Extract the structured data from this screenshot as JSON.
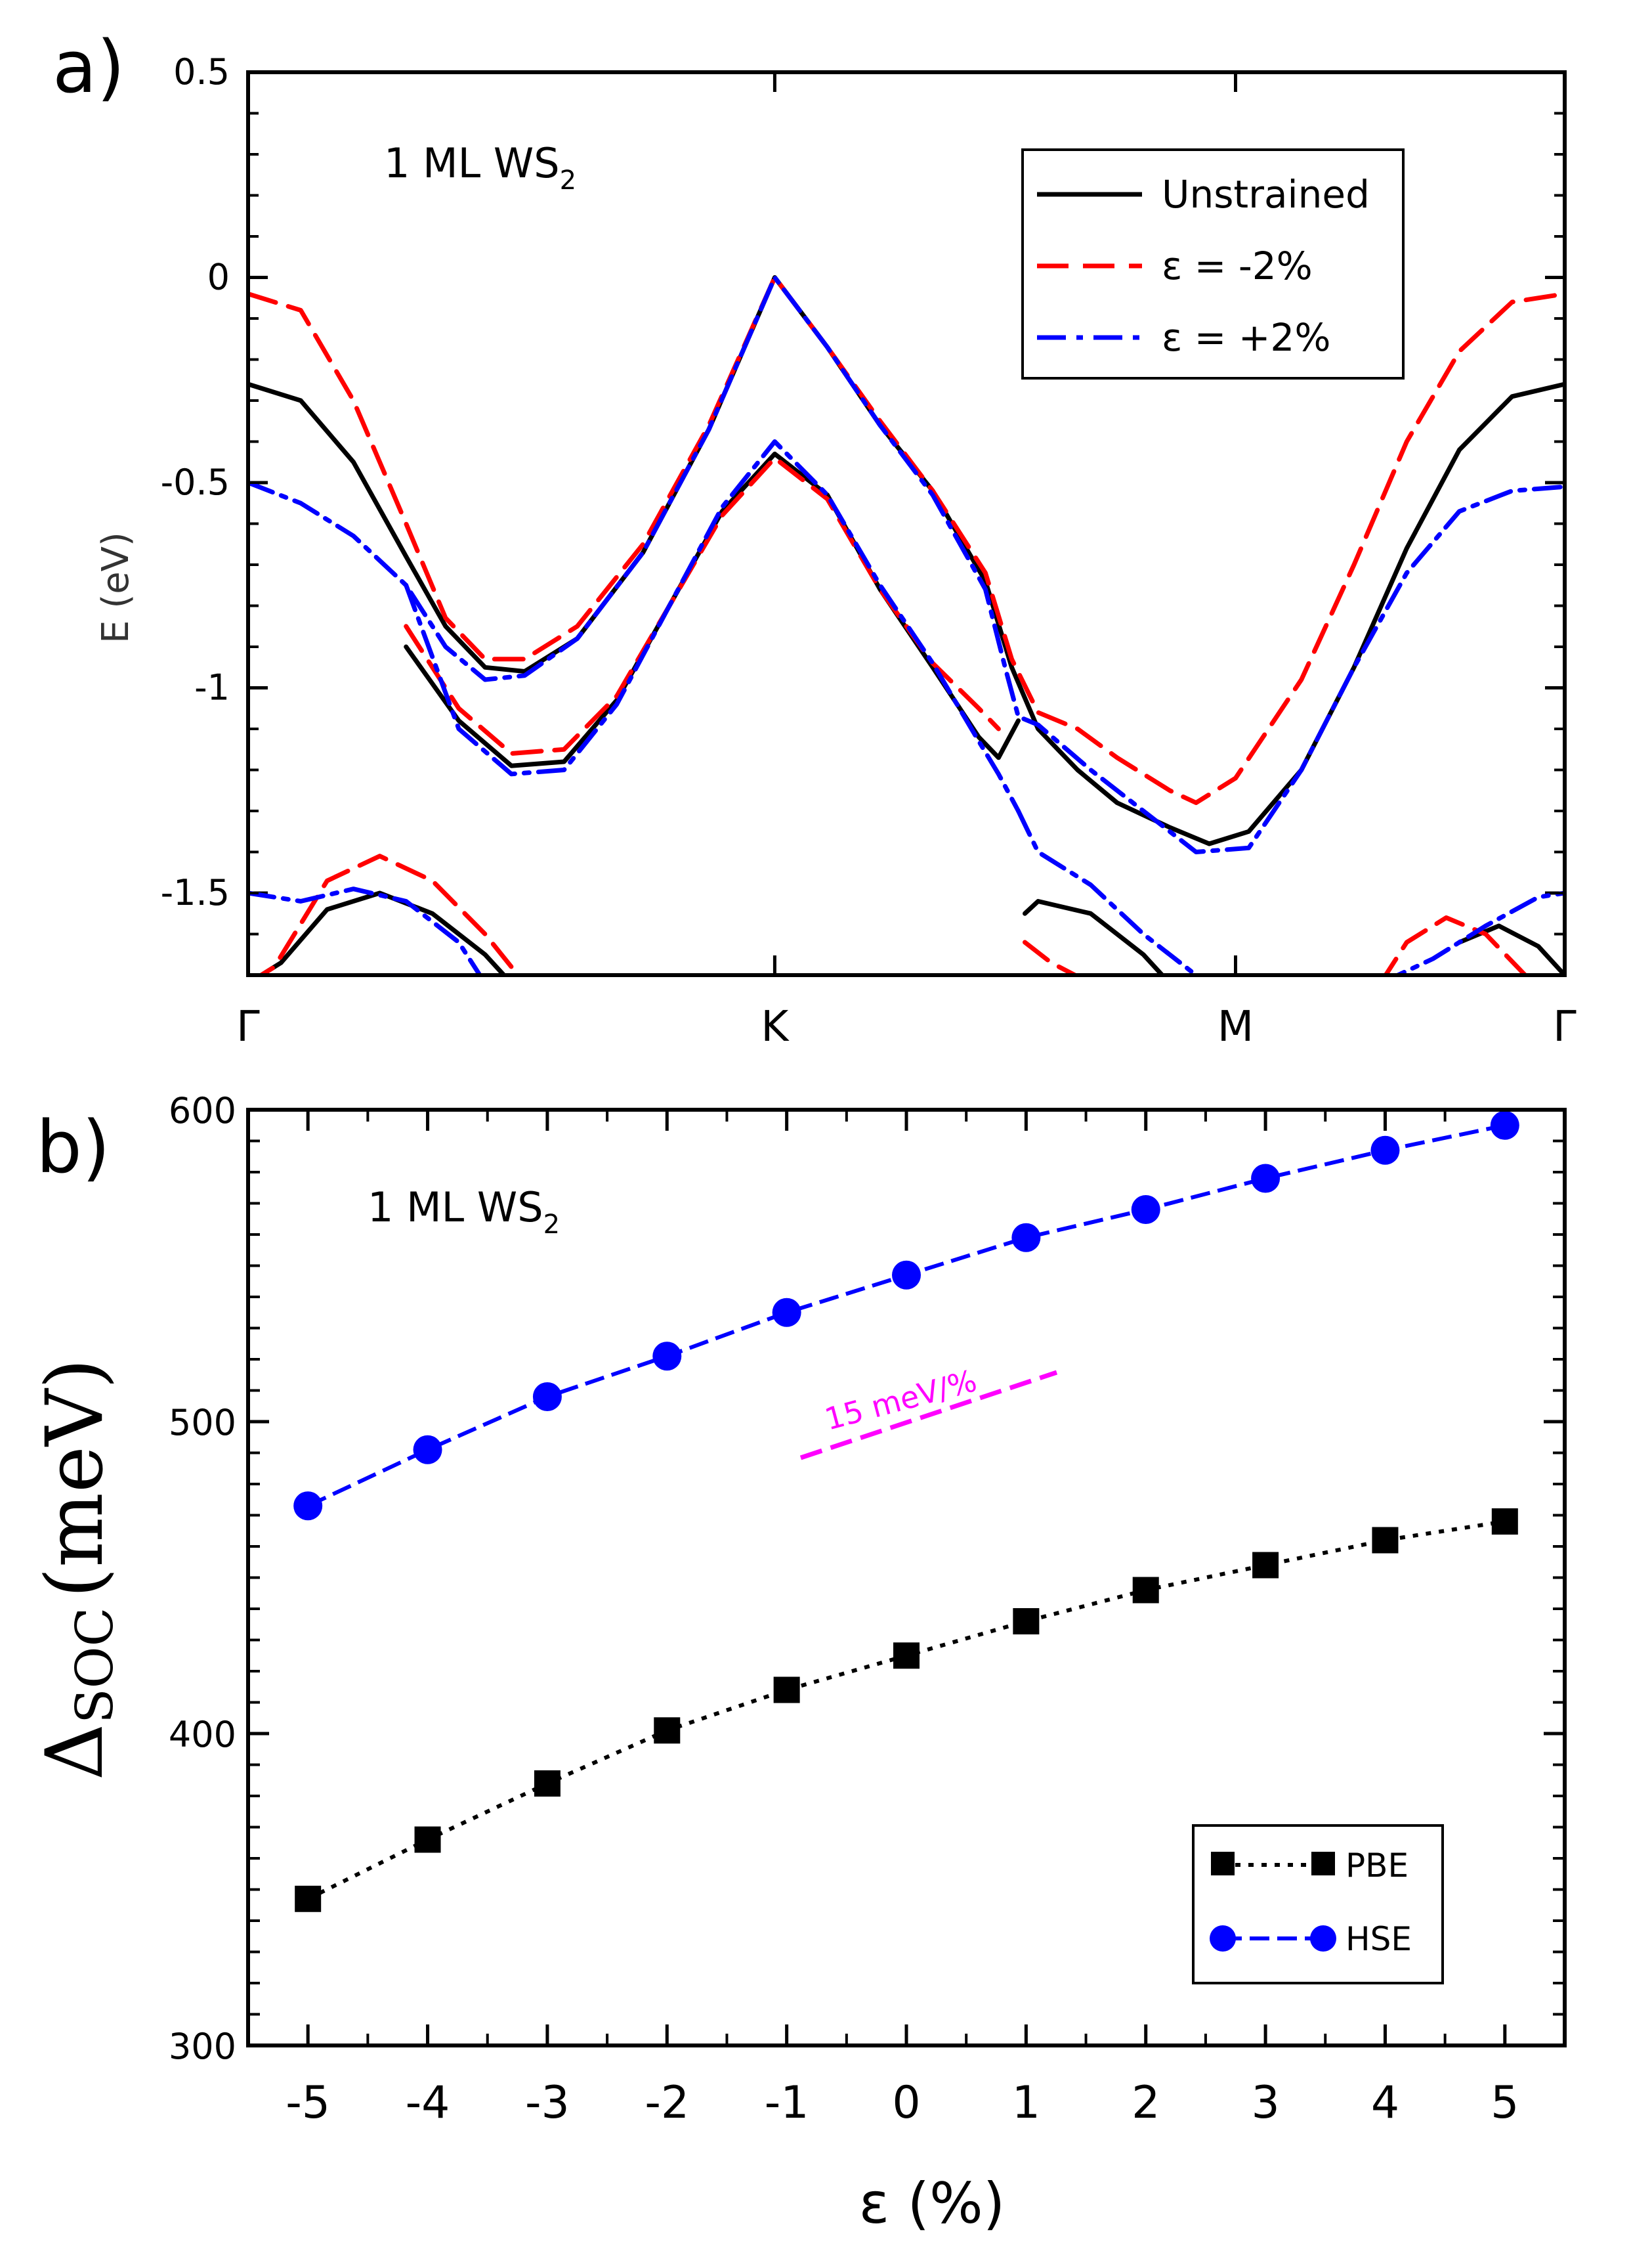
{
  "chart_data": [
    {
      "type": "line",
      "panel_label": "a)",
      "annotation": {
        "text": "1 ML WS",
        "subscript": "2"
      },
      "ylabel": "E (eV)",
      "ylim": [
        -1.7,
        0.5
      ],
      "yticks": [
        "0.5",
        "0",
        "-0.5",
        "-1",
        "-1.5"
      ],
      "ytick_values": [
        0.5,
        0,
        -0.5,
        -1,
        -1.5
      ],
      "kpoints": [
        {
          "label": "Γ",
          "pos": 0
        },
        {
          "label": "K",
          "pos": 0.4
        },
        {
          "label": "M",
          "pos": 0.75
        },
        {
          "label": "Γ",
          "pos": 1.0
        }
      ],
      "legend": [
        {
          "label": "Unstrained",
          "color": "#000000",
          "dash": "solid"
        },
        {
          "label": "ε = -2%",
          "color": "#ff0000",
          "dash": "dashed"
        },
        {
          "label": "ε = +2%",
          "color": "#0000ff",
          "dash": "dashdot"
        }
      ],
      "series": [
        {
          "name": "Unstrained band 1",
          "color": "#000000",
          "dash": "solid",
          "x": [
            0,
            0.04,
            0.08,
            0.12,
            0.15,
            0.18,
            0.21,
            0.25,
            0.3,
            0.35,
            0.4,
            0.44,
            0.48,
            0.52,
            0.56,
            0.58,
            0.6,
            0.63,
            0.66,
            0.7,
            0.73,
            0.76,
            0.8,
            0.84,
            0.88,
            0.92,
            0.96,
            1.0
          ],
          "y": [
            -0.26,
            -0.3,
            -0.45,
            -0.68,
            -0.85,
            -0.95,
            -0.96,
            -0.88,
            -0.67,
            -0.37,
            0.0,
            -0.17,
            -0.36,
            -0.52,
            -0.74,
            -0.95,
            -1.1,
            -1.2,
            -1.28,
            -1.34,
            -1.38,
            -1.35,
            -1.2,
            -0.95,
            -0.66,
            -0.42,
            -0.29,
            -0.26
          ]
        },
        {
          "name": "Unstrained band 2",
          "color": "#000000",
          "dash": "solid",
          "x": [
            0.12,
            0.16,
            0.2,
            0.24,
            0.28,
            0.32,
            0.36,
            0.4,
            0.44,
            0.48,
            0.52,
            0.555,
            0.57,
            0.585
          ],
          "y": [
            -0.9,
            -1.08,
            -1.19,
            -1.18,
            -1.03,
            -0.8,
            -0.57,
            -0.43,
            -0.53,
            -0.76,
            -0.95,
            -1.12,
            -1.17,
            -1.08
          ]
        },
        {
          "name": "Unstrained band 3",
          "color": "#000000",
          "dash": "solid",
          "x": [
            0.0,
            0.025,
            0.06,
            0.1,
            0.14,
            0.18,
            0.2
          ],
          "y": [
            -1.72,
            -1.67,
            -1.54,
            -1.5,
            -1.55,
            -1.65,
            -1.72
          ]
        },
        {
          "name": "Unstrained band 4",
          "color": "#000000",
          "dash": "solid",
          "x": [
            0.59,
            0.6,
            0.64,
            0.68,
            0.7
          ],
          "y": [
            -1.55,
            -1.52,
            -1.55,
            -1.65,
            -1.72
          ]
        },
        {
          "name": "Unstrained band 5",
          "color": "#000000",
          "dash": "solid",
          "x": [
            0.92,
            0.95,
            0.98,
            1.0
          ],
          "y": [
            -1.62,
            -1.58,
            -1.63,
            -1.7
          ]
        },
        {
          "name": "Strain -2% band 1",
          "color": "#ff0000",
          "dash": "dashed",
          "x": [
            0,
            0.04,
            0.08,
            0.12,
            0.15,
            0.18,
            0.21,
            0.25,
            0.3,
            0.35,
            0.4,
            0.44,
            0.48,
            0.52,
            0.56,
            0.58,
            0.6,
            0.63,
            0.66,
            0.7,
            0.72,
            0.75,
            0.8,
            0.84,
            0.88,
            0.92,
            0.96,
            1.0
          ],
          "y": [
            -0.04,
            -0.08,
            -0.3,
            -0.6,
            -0.83,
            -0.93,
            -0.93,
            -0.85,
            -0.65,
            -0.36,
            0.0,
            -0.17,
            -0.35,
            -0.52,
            -0.72,
            -0.93,
            -1.06,
            -1.1,
            -1.17,
            -1.25,
            -1.28,
            -1.22,
            -0.98,
            -0.7,
            -0.4,
            -0.18,
            -0.06,
            -0.04
          ]
        },
        {
          "name": "Strain -2% band 2",
          "color": "#ff0000",
          "dash": "dashed",
          "x": [
            0.12,
            0.16,
            0.2,
            0.24,
            0.28,
            0.32,
            0.36,
            0.4,
            0.44,
            0.48,
            0.52,
            0.555,
            0.57
          ],
          "y": [
            -0.85,
            -1.05,
            -1.16,
            -1.15,
            -1.02,
            -0.8,
            -0.58,
            -0.44,
            -0.54,
            -0.76,
            -0.94,
            -1.05,
            -1.1
          ]
        },
        {
          "name": "Strain -2% band 3",
          "color": "#ff0000",
          "dash": "dashed",
          "x": [
            0.0,
            0.02,
            0.06,
            0.1,
            0.14,
            0.18,
            0.21
          ],
          "y": [
            -1.72,
            -1.68,
            -1.47,
            -1.41,
            -1.47,
            -1.6,
            -1.72
          ]
        },
        {
          "name": "Strain -2% band 4",
          "color": "#ff0000",
          "dash": "dashed",
          "x": [
            0.59,
            0.61,
            0.64
          ],
          "y": [
            -1.62,
            -1.67,
            -1.72
          ]
        },
        {
          "name": "Strain -2% band 5",
          "color": "#ff0000",
          "dash": "dashed",
          "x": [
            0.86,
            0.88,
            0.91,
            0.94,
            0.97
          ],
          "y": [
            -1.72,
            -1.62,
            -1.56,
            -1.6,
            -1.7
          ]
        },
        {
          "name": "Strain +2% band 1",
          "color": "#0000ff",
          "dash": "dashdot",
          "x": [
            0,
            0.04,
            0.08,
            0.12,
            0.15,
            0.18,
            0.21,
            0.25,
            0.3,
            0.35,
            0.4,
            0.44,
            0.48,
            0.52,
            0.56,
            0.575,
            0.585,
            0.6,
            0.64,
            0.68,
            0.72,
            0.76,
            0.8,
            0.84,
            0.88,
            0.92,
            0.96,
            1.0
          ],
          "y": [
            -0.5,
            -0.55,
            -0.63,
            -0.75,
            -0.9,
            -0.98,
            -0.97,
            -0.88,
            -0.67,
            -0.37,
            0.0,
            -0.17,
            -0.36,
            -0.53,
            -0.76,
            -0.95,
            -1.07,
            -1.09,
            -1.2,
            -1.3,
            -1.4,
            -1.39,
            -1.2,
            -0.95,
            -0.72,
            -0.57,
            -0.52,
            -0.51
          ]
        },
        {
          "name": "Strain +2% band 2",
          "color": "#0000ff",
          "dash": "dashdot",
          "x": [
            0.12,
            0.16,
            0.2,
            0.24,
            0.28,
            0.32,
            0.36,
            0.4,
            0.44,
            0.48,
            0.52,
            0.555,
            0.57,
            0.585
          ],
          "y": [
            -0.75,
            -1.1,
            -1.21,
            -1.2,
            -1.04,
            -0.8,
            -0.56,
            -0.4,
            -0.53,
            -0.75,
            -0.94,
            -1.13,
            -1.21,
            -1.3
          ]
        },
        {
          "name": "Strain +2% band 3",
          "color": "#0000ff",
          "dash": "dashdot",
          "x": [
            0.0,
            0.04,
            0.08,
            0.12,
            0.16,
            0.18
          ],
          "y": [
            -1.5,
            -1.52,
            -1.49,
            -1.52,
            -1.62,
            -1.72
          ]
        },
        {
          "name": "Strain +2% band 4",
          "color": "#0000ff",
          "dash": "dashdot",
          "x": [
            0.585,
            0.6,
            0.64,
            0.68,
            0.72,
            0.735
          ],
          "y": [
            -1.3,
            -1.4,
            -1.48,
            -1.6,
            -1.7,
            -1.72
          ]
        },
        {
          "name": "Strain +2% band 5",
          "color": "#0000ff",
          "dash": "dashdot",
          "x": [
            0.86,
            0.9,
            0.94,
            0.98,
            1.0
          ],
          "y": [
            -1.72,
            -1.66,
            -1.58,
            -1.51,
            -1.5
          ]
        }
      ]
    },
    {
      "type": "line",
      "panel_label": "b)",
      "annotation": {
        "text": "1 ML WS",
        "subscript": "2"
      },
      "xlabel": "ε (%)",
      "ylabel": {
        "text": "Δ",
        "subscript": "SOC",
        "unit": "(meV)"
      },
      "xlim": [
        -5.5,
        5.5
      ],
      "ylim": [
        300,
        600
      ],
      "xticks": [
        "-5",
        "-4",
        "-3",
        "-2",
        "-1",
        "0",
        "1",
        "2",
        "3",
        "4",
        "5"
      ],
      "xtick_values": [
        -5,
        -4,
        -3,
        -2,
        -1,
        0,
        1,
        2,
        3,
        4,
        5
      ],
      "yticks": [
        "600",
        "500",
        "400",
        "300"
      ],
      "ytick_values": [
        600,
        500,
        400,
        300
      ],
      "slope_annotation": "15 meV/%",
      "x": [
        -5,
        -4,
        -3,
        -2,
        -1,
        0,
        1,
        2,
        3,
        4,
        5
      ],
      "series": [
        {
          "name": "PBE",
          "color": "#000000",
          "marker": "square",
          "dash": "dotted",
          "values": [
            347,
            366,
            384,
            401,
            414,
            425,
            436,
            446,
            454,
            462,
            468
          ]
        },
        {
          "name": "HSE",
          "color": "#0000ff",
          "marker": "circle",
          "dash": "dashed",
          "values": [
            473,
            491,
            508,
            521,
            535,
            547,
            559,
            568,
            578,
            587,
            595
          ]
        }
      ]
    }
  ]
}
